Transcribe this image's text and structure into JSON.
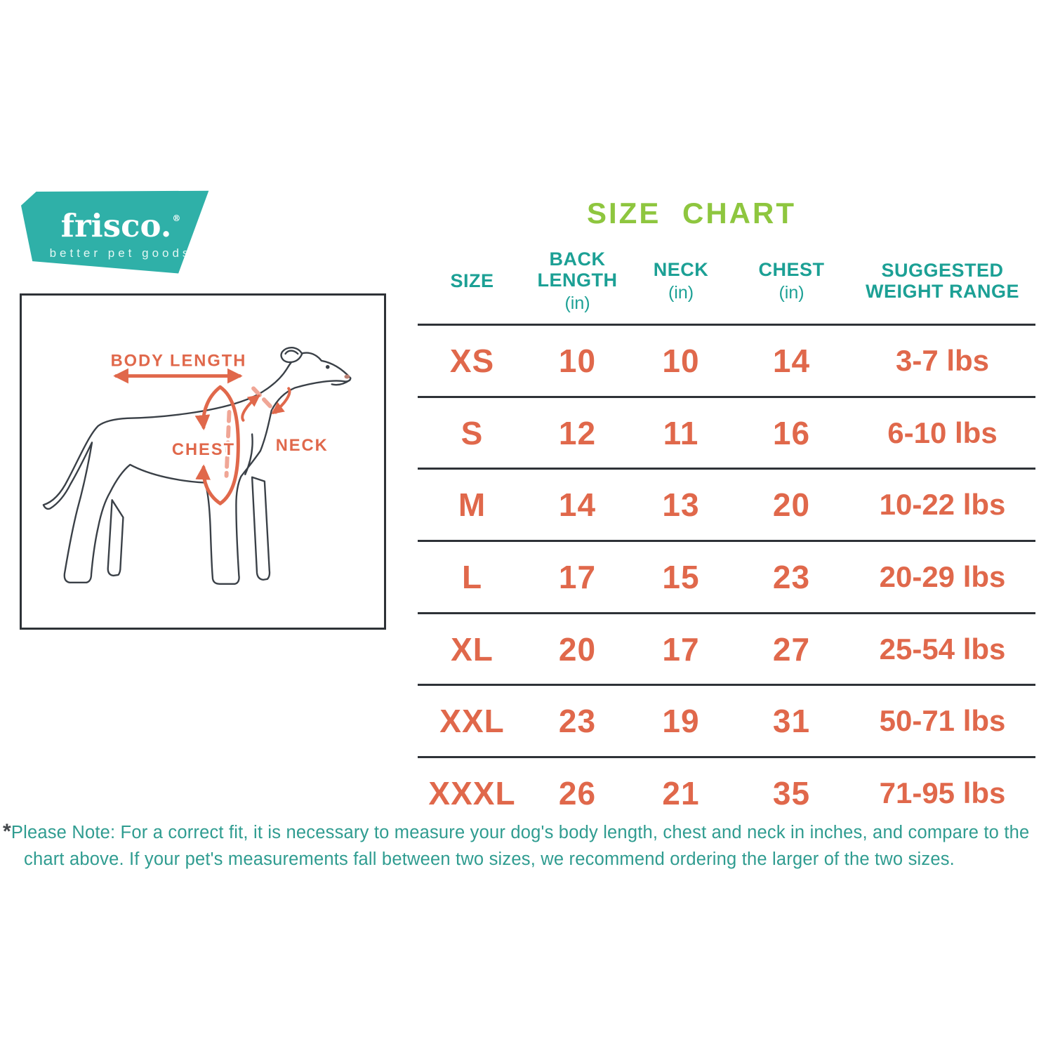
{
  "colors": {
    "logo_teal": "#2FB0A8",
    "header_teal": "#1CA095",
    "title_green": "#8EC63F",
    "value_orange": "#E0684B",
    "line_dark": "#2E3237",
    "note_teal": "#2F9C90",
    "diagram_outline": "#3A4047",
    "dashed_peach": "#F0A696"
  },
  "logo": {
    "brand": "frisco.",
    "registered": "®",
    "tagline": "better pet goods"
  },
  "title": {
    "text": "SIZE CHART"
  },
  "diagram": {
    "body_length_label": "BODY LENGTH",
    "chest_label": "CHEST",
    "neck_label": "NECK"
  },
  "table": {
    "columns": [
      {
        "label": "SIZE",
        "unit": ""
      },
      {
        "label": "BACK LENGTH",
        "unit": "(in)"
      },
      {
        "label": "NECK",
        "unit": "(in)"
      },
      {
        "label": "CHEST",
        "unit": "(in)"
      },
      {
        "label": "SUGGESTED WEIGHT RANGE",
        "unit": ""
      }
    ],
    "rows": [
      {
        "size": "XS",
        "back_length": "10",
        "neck": "10",
        "chest": "14",
        "weight": "3-7 lbs"
      },
      {
        "size": "S",
        "back_length": "12",
        "neck": "11",
        "chest": "16",
        "weight": "6-10 lbs"
      },
      {
        "size": "M",
        "back_length": "14",
        "neck": "13",
        "chest": "20",
        "weight": "10-22 lbs"
      },
      {
        "size": "L",
        "back_length": "17",
        "neck": "15",
        "chest": "23",
        "weight": "20-29 lbs"
      },
      {
        "size": "XL",
        "back_length": "20",
        "neck": "17",
        "chest": "27",
        "weight": "25-54 lbs"
      },
      {
        "size": "XXL",
        "back_length": "23",
        "neck": "19",
        "chest": "31",
        "weight": "50-71 lbs"
      },
      {
        "size": "XXXL",
        "back_length": "26",
        "neck": "21",
        "chest": "35",
        "weight": "71-95 lbs"
      }
    ]
  },
  "note": {
    "asterisk": "*",
    "text": "Please Note: For a correct fit, it is necessary to measure your dog's body length, chest and neck in inches, and compare to the chart above. If your pet's measurements fall between two sizes, we recommend ordering the larger of the two sizes."
  },
  "chart_data": {
    "type": "table",
    "title": "SIZE CHART",
    "columns": [
      "SIZE",
      "BACK LENGTH (in)",
      "NECK (in)",
      "CHEST (in)",
      "SUGGESTED WEIGHT RANGE"
    ],
    "rows": [
      [
        "XS",
        "10",
        "10",
        "14",
        "3-7 lbs"
      ],
      [
        "S",
        "12",
        "11",
        "16",
        "6-10 lbs"
      ],
      [
        "M",
        "14",
        "13",
        "20",
        "10-22 lbs"
      ],
      [
        "L",
        "17",
        "15",
        "23",
        "20-29 lbs"
      ],
      [
        "XL",
        "20",
        "17",
        "27",
        "25-54 lbs"
      ],
      [
        "XXL",
        "23",
        "19",
        "31",
        "50-71 lbs"
      ],
      [
        "XXXL",
        "26",
        "21",
        "35",
        "71-95 lbs"
      ]
    ]
  }
}
